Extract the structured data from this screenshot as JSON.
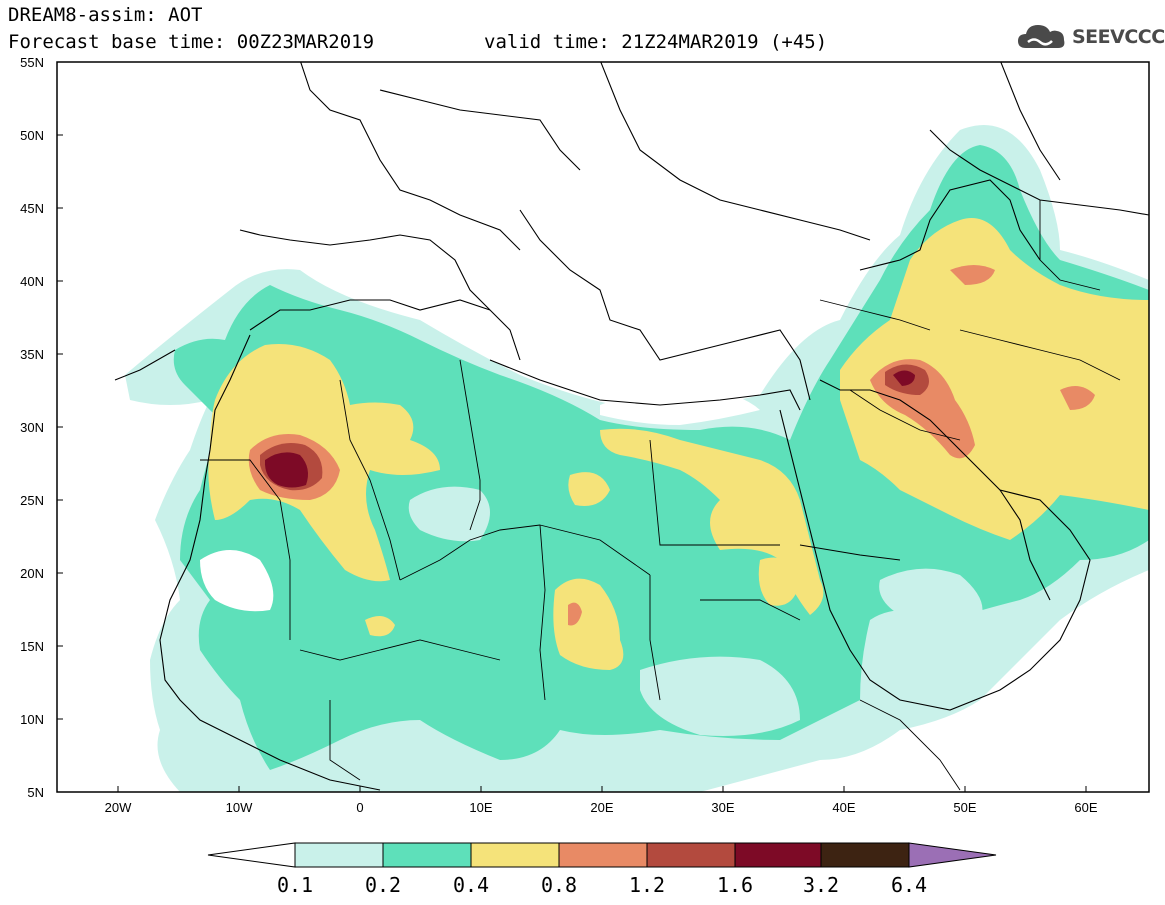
{
  "header": {
    "title_line1": "DREAM8-assim: AOT",
    "title_line2": "Forecast base time: 00Z23MAR2019",
    "valid_time": "valid time: 21Z24MAR2019 (+45)"
  },
  "logo": {
    "text": "SEEVCCC",
    "icon": "cloud-icon"
  },
  "map": {
    "lon_range": [
      -25,
      65
    ],
    "lat_range": [
      5,
      55
    ],
    "lat_labels": [
      "55N",
      "50N",
      "45N",
      "40N",
      "35N",
      "30N",
      "25N",
      "20N",
      "15N",
      "10N",
      "5N"
    ],
    "lon_labels": [
      "20W",
      "10W",
      "0",
      "10E",
      "20E",
      "30E",
      "40E",
      "50E",
      "60E"
    ],
    "dust_field_colors": {
      "low": "#c9f1ea",
      "mid": "#5ee0ba",
      "high": "#f5e37a",
      "orange": "#e88a65",
      "red": "#b34a3e",
      "darkred": "#7d0a26"
    }
  },
  "colorbar": {
    "labels": [
      "0.1",
      "0.2",
      "0.4",
      "0.8",
      "1.2",
      "1.6",
      "3.2",
      "6.4"
    ],
    "colors": [
      "#c9f1ea",
      "#5ee0ba",
      "#f5e37a",
      "#e88a65",
      "#b34a3e",
      "#7d0a26",
      "#3d2312"
    ],
    "under_color": "#ffffff",
    "over_color": "#9b6fb5"
  }
}
